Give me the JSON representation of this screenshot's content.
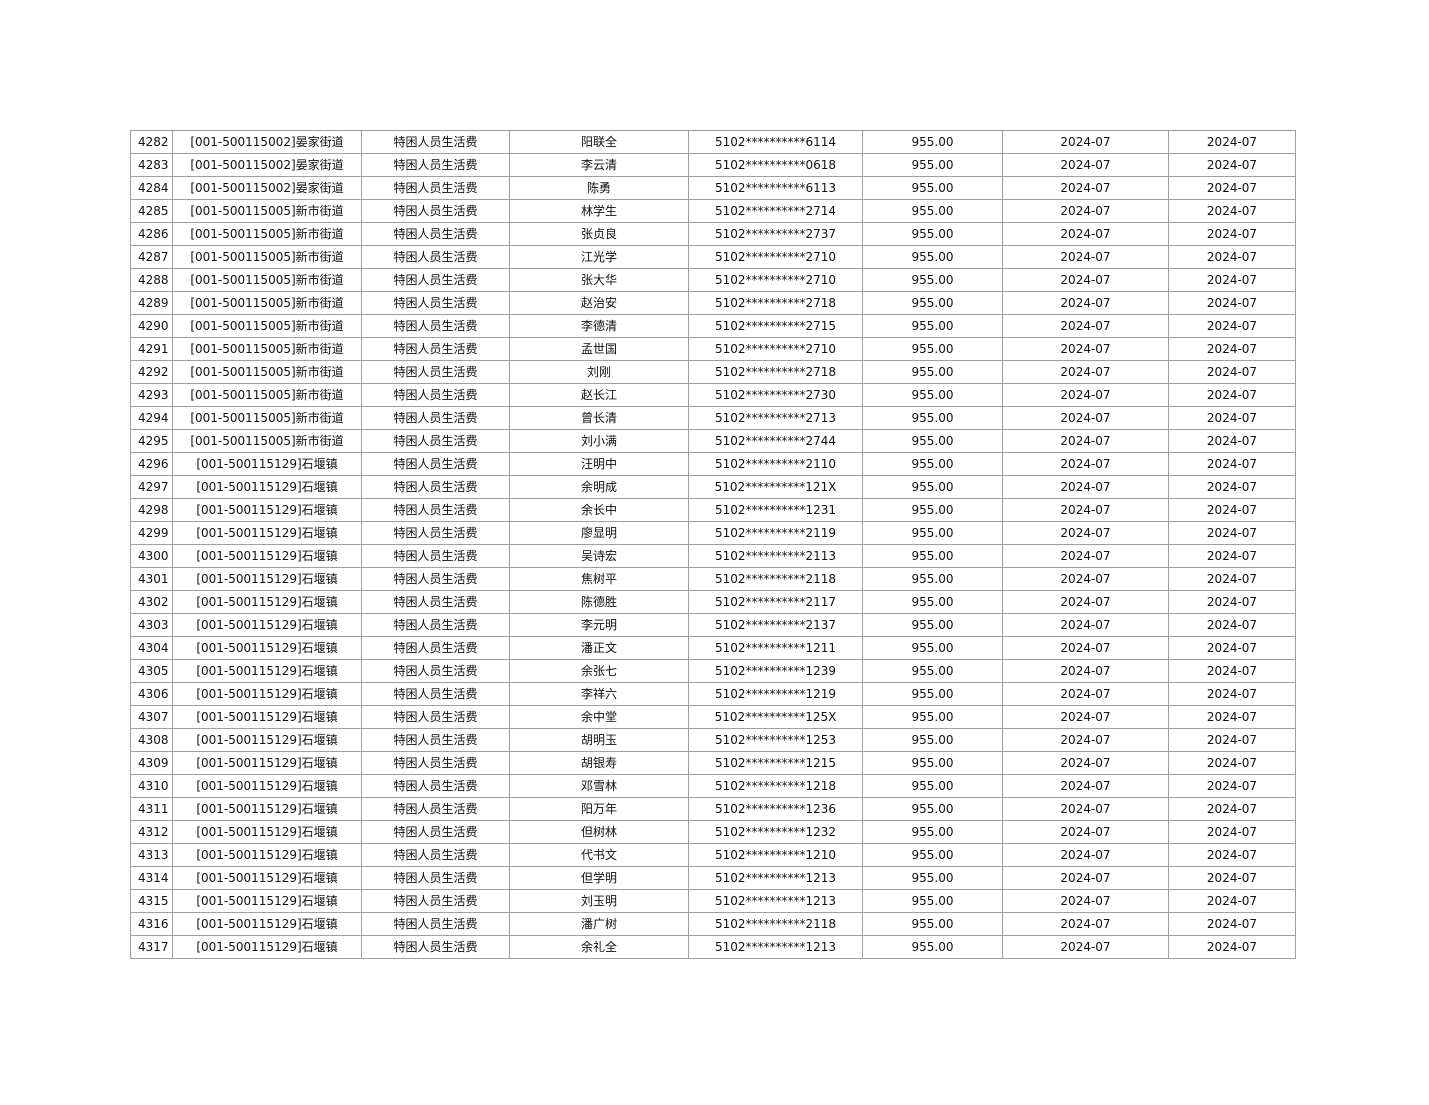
{
  "table": {
    "rows": [
      [
        "4282",
        "[001-500115002]晏家街道",
        "特困人员生活费",
        "阳联全",
        "5102**********6114",
        "955.00",
        "2024-07",
        "2024-07"
      ],
      [
        "4283",
        "[001-500115002]晏家街道",
        "特困人员生活费",
        "李云清",
        "5102**********0618",
        "955.00",
        "2024-07",
        "2024-07"
      ],
      [
        "4284",
        "[001-500115002]晏家街道",
        "特困人员生活费",
        "陈勇",
        "5102**********6113",
        "955.00",
        "2024-07",
        "2024-07"
      ],
      [
        "4285",
        "[001-500115005]新市街道",
        "特困人员生活费",
        "林学生",
        "5102**********2714",
        "955.00",
        "2024-07",
        "2024-07"
      ],
      [
        "4286",
        "[001-500115005]新市街道",
        "特困人员生活费",
        "张贞良",
        "5102**********2737",
        "955.00",
        "2024-07",
        "2024-07"
      ],
      [
        "4287",
        "[001-500115005]新市街道",
        "特困人员生活费",
        "江光学",
        "5102**********2710",
        "955.00",
        "2024-07",
        "2024-07"
      ],
      [
        "4288",
        "[001-500115005]新市街道",
        "特困人员生活费",
        "张大华",
        "5102**********2710",
        "955.00",
        "2024-07",
        "2024-07"
      ],
      [
        "4289",
        "[001-500115005]新市街道",
        "特困人员生活费",
        "赵治安",
        "5102**********2718",
        "955.00",
        "2024-07",
        "2024-07"
      ],
      [
        "4290",
        "[001-500115005]新市街道",
        "特困人员生活费",
        "李德清",
        "5102**********2715",
        "955.00",
        "2024-07",
        "2024-07"
      ],
      [
        "4291",
        "[001-500115005]新市街道",
        "特困人员生活费",
        "孟世国",
        "5102**********2710",
        "955.00",
        "2024-07",
        "2024-07"
      ],
      [
        "4292",
        "[001-500115005]新市街道",
        "特困人员生活费",
        "刘刚",
        "5102**********2718",
        "955.00",
        "2024-07",
        "2024-07"
      ],
      [
        "4293",
        "[001-500115005]新市街道",
        "特困人员生活费",
        "赵长江",
        "5102**********2730",
        "955.00",
        "2024-07",
        "2024-07"
      ],
      [
        "4294",
        "[001-500115005]新市街道",
        "特困人员生活费",
        "曾长清",
        "5102**********2713",
        "955.00",
        "2024-07",
        "2024-07"
      ],
      [
        "4295",
        "[001-500115005]新市街道",
        "特困人员生活费",
        "刘小满",
        "5102**********2744",
        "955.00",
        "2024-07",
        "2024-07"
      ],
      [
        "4296",
        "[001-500115129]石堰镇",
        "特困人员生活费",
        "汪明中",
        "5102**********2110",
        "955.00",
        "2024-07",
        "2024-07"
      ],
      [
        "4297",
        "[001-500115129]石堰镇",
        "特困人员生活费",
        "余明成",
        "5102**********121X",
        "955.00",
        "2024-07",
        "2024-07"
      ],
      [
        "4298",
        "[001-500115129]石堰镇",
        "特困人员生活费",
        "余长中",
        "5102**********1231",
        "955.00",
        "2024-07",
        "2024-07"
      ],
      [
        "4299",
        "[001-500115129]石堰镇",
        "特困人员生活费",
        "廖显明",
        "5102**********2119",
        "955.00",
        "2024-07",
        "2024-07"
      ],
      [
        "4300",
        "[001-500115129]石堰镇",
        "特困人员生活费",
        "吴诗宏",
        "5102**********2113",
        "955.00",
        "2024-07",
        "2024-07"
      ],
      [
        "4301",
        "[001-500115129]石堰镇",
        "特困人员生活费",
        "焦树平",
        "5102**********2118",
        "955.00",
        "2024-07",
        "2024-07"
      ],
      [
        "4302",
        "[001-500115129]石堰镇",
        "特困人员生活费",
        "陈德胜",
        "5102**********2117",
        "955.00",
        "2024-07",
        "2024-07"
      ],
      [
        "4303",
        "[001-500115129]石堰镇",
        "特困人员生活费",
        "李元明",
        "5102**********2137",
        "955.00",
        "2024-07",
        "2024-07"
      ],
      [
        "4304",
        "[001-500115129]石堰镇",
        "特困人员生活费",
        "潘正文",
        "5102**********1211",
        "955.00",
        "2024-07",
        "2024-07"
      ],
      [
        "4305",
        "[001-500115129]石堰镇",
        "特困人员生活费",
        "余张七",
        "5102**********1239",
        "955.00",
        "2024-07",
        "2024-07"
      ],
      [
        "4306",
        "[001-500115129]石堰镇",
        "特困人员生活费",
        "李祥六",
        "5102**********1219",
        "955.00",
        "2024-07",
        "2024-07"
      ],
      [
        "4307",
        "[001-500115129]石堰镇",
        "特困人员生活费",
        "余中堂",
        "5102**********125X",
        "955.00",
        "2024-07",
        "2024-07"
      ],
      [
        "4308",
        "[001-500115129]石堰镇",
        "特困人员生活费",
        "胡明玉",
        "5102**********1253",
        "955.00",
        "2024-07",
        "2024-07"
      ],
      [
        "4309",
        "[001-500115129]石堰镇",
        "特困人员生活费",
        "胡银寿",
        "5102**********1215",
        "955.00",
        "2024-07",
        "2024-07"
      ],
      [
        "4310",
        "[001-500115129]石堰镇",
        "特困人员生活费",
        "邓雪林",
        "5102**********1218",
        "955.00",
        "2024-07",
        "2024-07"
      ],
      [
        "4311",
        "[001-500115129]石堰镇",
        "特困人员生活费",
        "阳万年",
        "5102**********1236",
        "955.00",
        "2024-07",
        "2024-07"
      ],
      [
        "4312",
        "[001-500115129]石堰镇",
        "特困人员生活费",
        "但树林",
        "5102**********1232",
        "955.00",
        "2024-07",
        "2024-07"
      ],
      [
        "4313",
        "[001-500115129]石堰镇",
        "特困人员生活费",
        "代书文",
        "5102**********1210",
        "955.00",
        "2024-07",
        "2024-07"
      ],
      [
        "4314",
        "[001-500115129]石堰镇",
        "特困人员生活费",
        "但学明",
        "5102**********1213",
        "955.00",
        "2024-07",
        "2024-07"
      ],
      [
        "4315",
        "[001-500115129]石堰镇",
        "特困人员生活费",
        "刘玉明",
        "5102**********1213",
        "955.00",
        "2024-07",
        "2024-07"
      ],
      [
        "4316",
        "[001-500115129]石堰镇",
        "特困人员生活费",
        "潘广树",
        "5102**********2118",
        "955.00",
        "2024-07",
        "2024-07"
      ],
      [
        "4317",
        "[001-500115129]石堰镇",
        "特困人员生活费",
        "余礼全",
        "5102**********1213",
        "955.00",
        "2024-07",
        "2024-07"
      ]
    ]
  }
}
